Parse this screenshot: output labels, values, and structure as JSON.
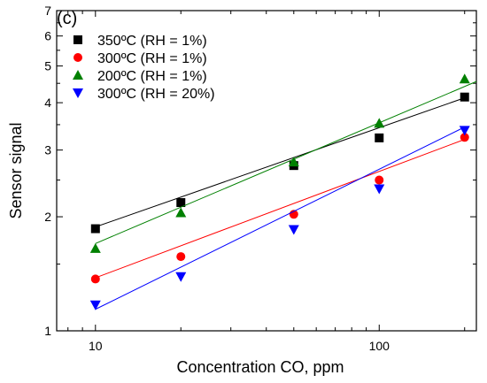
{
  "chart_data": {
    "type": "scatter",
    "panel_label": "(c)",
    "xlabel": "Concentration CO, ppm",
    "ylabel": "Sensor signal",
    "xscale": "log",
    "yscale": "log",
    "xlim": [
      7.3,
      220
    ],
    "ylim": [
      1,
      7
    ],
    "x_major_ticks": [
      10,
      100
    ],
    "x_tick_labels": [
      "10",
      "100"
    ],
    "y_major_ticks": [
      1,
      2,
      3,
      4,
      5,
      6,
      7
    ],
    "y_tick_labels": [
      "1",
      "2",
      "3",
      "4",
      "5",
      "6",
      "7"
    ],
    "legend_position": "top-left",
    "series": [
      {
        "name": "350ºC (RH = 1%)",
        "marker": "square",
        "color": "#000000",
        "x": [
          10,
          20,
          50,
          100,
          200
        ],
        "y": [
          1.86,
          2.18,
          2.73,
          3.23,
          4.14
        ],
        "fit": [
          [
            10,
            1.88
          ],
          [
            200,
            4.12
          ]
        ]
      },
      {
        "name": "300ºC (RH = 1%)",
        "marker": "circle",
        "color": "#ff0000",
        "x": [
          10,
          20,
          50,
          100,
          200
        ],
        "y": [
          1.37,
          1.57,
          2.03,
          2.5,
          3.24
        ],
        "fit": [
          [
            10,
            1.38
          ],
          [
            200,
            3.2
          ]
        ]
      },
      {
        "name": "200ºC (RH = 1%)",
        "marker": "triangle-up",
        "color": "#008000",
        "x": [
          10,
          20,
          50,
          100,
          200
        ],
        "y": [
          1.65,
          2.05,
          2.79,
          3.53,
          4.62
        ],
        "fit": [
          [
            10,
            1.7
          ],
          [
            220,
            4.55
          ]
        ]
      },
      {
        "name": "300ºC (RH = 20%)",
        "marker": "triangle-down",
        "color": "#0000ff",
        "x": [
          10,
          20,
          50,
          100,
          200
        ],
        "y": [
          1.17,
          1.39,
          1.85,
          2.37,
          3.38
        ],
        "fit": [
          [
            10,
            1.14
          ],
          [
            200,
            3.45
          ]
        ]
      }
    ]
  }
}
